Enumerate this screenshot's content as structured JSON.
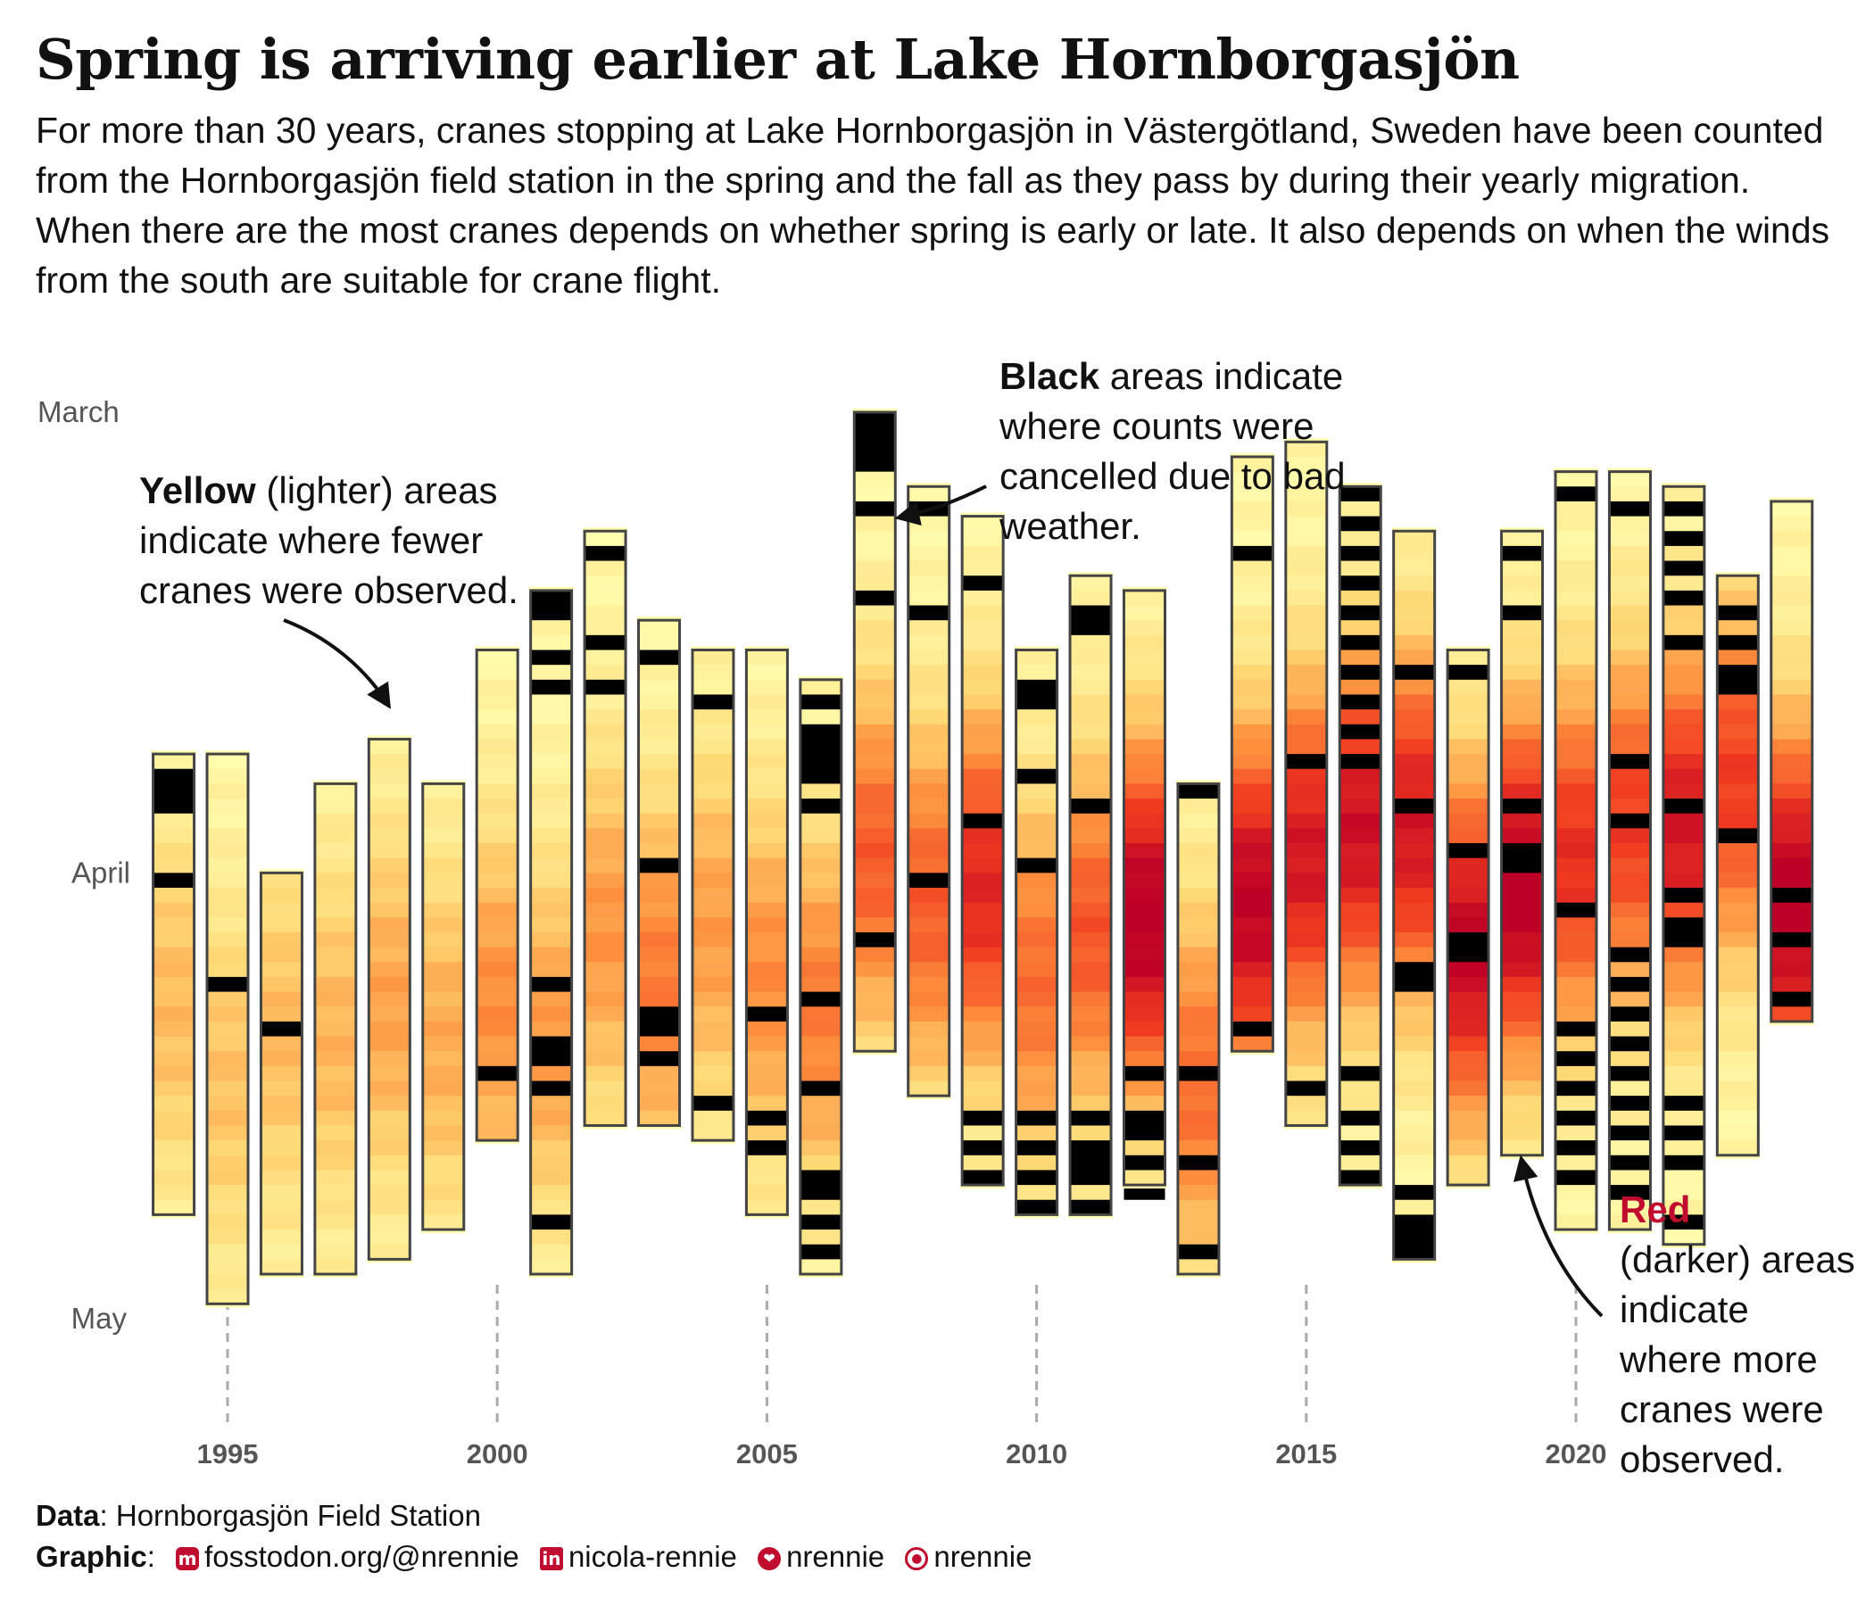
{
  "title": "Spring is arriving earlier at Lake Hornborgasjön",
  "subtitle": "For more than 30 years, cranes stopping at Lake Hornborgasjön in Västergötland, Sweden have been counted from the Hornborgasjön field station in the spring and the fall as they pass by during their yearly migration. When there are the most cranes depends on whether spring is early or late. It also depends on when the winds from the south are suitable for crane flight.",
  "annotations": {
    "yellow": {
      "bold": "Yellow",
      "rest": " (lighter) areas indicate where fewer cranes were observed."
    },
    "black": {
      "bold": "Black",
      "rest": " areas indicate where counts were cancelled due to bad weather."
    },
    "red": {
      "bold": "Red",
      "rest": "(darker) areas indicate where more cranes were observed."
    }
  },
  "caption": {
    "data_label": "Data",
    "data_text": ": Hornborgasjön Field Station",
    "graphic_label": "Graphic",
    "mastodon": "fosstodon.org/@nrennie",
    "linkedin": "nicola-rennie",
    "bluesky": "nrennie",
    "github": "nrennie"
  },
  "icons": [
    "mastodon-icon",
    "linkedin-icon",
    "bluesky-icon",
    "github-icon"
  ],
  "colors": {
    "low": "#ffffb2",
    "mid": "#fd8d3c",
    "high": "#bd0026",
    "cancelled": "#000000",
    "brand": "#c00d2f"
  },
  "chart_data": {
    "type": "heatmap",
    "title": "Spring is arriving earlier at Lake Hornborgasjön",
    "x_axis": {
      "ticks": [
        1995,
        2000,
        2005,
        2010,
        2015,
        2020
      ],
      "label": ""
    },
    "y_axis": {
      "ticks": [
        "March",
        "April",
        "May"
      ],
      "tick_days": [
        0,
        31,
        61
      ],
      "label": ""
    },
    "unit": "y = days after March 1 (counting window start/end)",
    "scale": "fill intensity 0 (yellow, fewer cranes) to 1 (red, more cranes); black = count cancelled",
    "years": [
      {
        "year": 1994,
        "start": 23,
        "end": 54,
        "peak": 0.3,
        "peak_day": 40,
        "cancelled": [
          [
            24,
            27
          ],
          [
            31,
            32
          ]
        ]
      },
      {
        "year": 1995,
        "start": 23,
        "end": 60,
        "peak": 0.28,
        "peak_day": 45,
        "cancelled": [
          [
            38,
            39
          ]
        ]
      },
      {
        "year": 1996,
        "start": 31,
        "end": 58,
        "peak": 0.3,
        "peak_day": 42,
        "cancelled": [
          [
            41,
            42
          ]
        ]
      },
      {
        "year": 1997,
        "start": 25,
        "end": 58,
        "peak": 0.32,
        "peak_day": 42,
        "cancelled": []
      },
      {
        "year": 1998,
        "start": 22,
        "end": 57,
        "peak": 0.38,
        "peak_day": 40,
        "cancelled": []
      },
      {
        "year": 1999,
        "start": 25,
        "end": 55,
        "peak": 0.35,
        "peak_day": 42,
        "cancelled": []
      },
      {
        "year": 2000,
        "start": 16,
        "end": 49,
        "peak": 0.45,
        "peak_day": 40,
        "cancelled": [
          [
            44,
            45
          ]
        ]
      },
      {
        "year": 2001,
        "start": 12,
        "end": 58,
        "peak": 0.4,
        "peak_day": 42,
        "cancelled": [
          [
            12,
            14
          ],
          [
            16,
            17
          ],
          [
            18,
            19
          ],
          [
            38,
            39
          ],
          [
            42,
            44
          ],
          [
            45,
            46
          ],
          [
            54,
            55
          ]
        ]
      },
      {
        "year": 2002,
        "start": 8,
        "end": 48,
        "peak": 0.42,
        "peak_day": 35,
        "cancelled": [
          [
            9,
            10
          ],
          [
            15,
            16
          ],
          [
            18,
            19
          ]
        ]
      },
      {
        "year": 2003,
        "start": 14,
        "end": 48,
        "peak": 0.5,
        "peak_day": 38,
        "cancelled": [
          [
            16,
            17
          ],
          [
            30,
            31
          ],
          [
            40,
            42
          ],
          [
            43,
            44
          ]
        ]
      },
      {
        "year": 2004,
        "start": 16,
        "end": 49,
        "peak": 0.4,
        "peak_day": 35,
        "cancelled": [
          [
            19,
            20
          ],
          [
            46,
            47
          ]
        ]
      },
      {
        "year": 2005,
        "start": 16,
        "end": 54,
        "peak": 0.45,
        "peak_day": 38,
        "cancelled": [
          [
            40,
            41
          ],
          [
            47,
            48
          ],
          [
            49,
            50
          ]
        ]
      },
      {
        "year": 2006,
        "start": 18,
        "end": 58,
        "peak": 0.5,
        "peak_day": 40,
        "cancelled": [
          [
            19,
            20
          ],
          [
            21,
            25
          ],
          [
            26,
            27
          ],
          [
            39,
            40
          ],
          [
            45,
            46
          ],
          [
            51,
            53
          ],
          [
            54,
            55
          ],
          [
            56,
            57
          ]
        ]
      },
      {
        "year": 2007,
        "start": 0,
        "end": 43,
        "peak": 0.6,
        "peak_day": 30,
        "cancelled": [
          [
            0,
            4
          ],
          [
            6,
            7
          ],
          [
            12,
            13
          ],
          [
            35,
            36
          ]
        ]
      },
      {
        "year": 2008,
        "start": 5,
        "end": 46,
        "peak": 0.6,
        "peak_day": 33,
        "cancelled": [
          [
            6,
            7
          ],
          [
            13,
            14
          ],
          [
            31,
            32
          ]
        ]
      },
      {
        "year": 2009,
        "start": 7,
        "end": 52,
        "peak": 0.78,
        "peak_day": 32,
        "cancelled": [
          [
            11,
            12
          ],
          [
            27,
            28
          ],
          [
            47,
            48
          ],
          [
            49,
            50
          ],
          [
            51,
            52
          ]
        ]
      },
      {
        "year": 2010,
        "start": 16,
        "end": 54,
        "peak": 0.55,
        "peak_day": 38,
        "cancelled": [
          [
            18,
            20
          ],
          [
            24,
            25
          ],
          [
            30,
            31
          ],
          [
            47,
            48
          ],
          [
            49,
            50
          ],
          [
            51,
            52
          ],
          [
            53,
            54
          ]
        ]
      },
      {
        "year": 2011,
        "start": 11,
        "end": 54,
        "peak": 0.62,
        "peak_day": 35,
        "cancelled": [
          [
            13,
            15
          ],
          [
            26,
            27
          ],
          [
            47,
            48
          ],
          [
            49,
            52
          ],
          [
            53,
            54
          ]
        ]
      },
      {
        "year": 2012,
        "start": 12,
        "end": 52,
        "peak": 0.98,
        "peak_day": 34,
        "cancelled": [
          [
            44,
            45
          ],
          [
            47,
            49
          ],
          [
            50,
            51
          ],
          [
            52,
            53
          ]
        ]
      },
      {
        "year": 2013,
        "start": 25,
        "end": 58,
        "peak": 0.55,
        "peak_day": 45,
        "cancelled": [
          [
            25,
            26
          ],
          [
            44,
            45
          ],
          [
            50,
            51
          ],
          [
            56,
            57
          ]
        ]
      },
      {
        "year": 2014,
        "start": 3,
        "end": 43,
        "peak": 0.95,
        "peak_day": 33,
        "cancelled": [
          [
            9,
            10
          ],
          [
            41,
            42
          ]
        ]
      },
      {
        "year": 2015,
        "start": 2,
        "end": 48,
        "peak": 0.85,
        "peak_day": 30,
        "cancelled": [
          [
            23,
            24
          ],
          [
            45,
            46
          ]
        ]
      },
      {
        "year": 2016,
        "start": 5,
        "end": 52,
        "peak": 0.88,
        "peak_day": 28,
        "cancelled": [
          [
            5,
            6
          ],
          [
            7,
            8
          ],
          [
            9,
            10
          ],
          [
            11,
            12
          ],
          [
            13,
            14
          ],
          [
            15,
            16
          ],
          [
            17,
            18
          ],
          [
            19,
            20
          ],
          [
            21,
            22
          ],
          [
            23,
            24
          ],
          [
            44,
            45
          ],
          [
            47,
            48
          ],
          [
            49,
            50
          ],
          [
            51,
            52
          ]
        ]
      },
      {
        "year": 2017,
        "start": 8,
        "end": 57,
        "peak": 0.85,
        "peak_day": 28,
        "cancelled": [
          [
            17,
            18
          ],
          [
            26,
            27
          ],
          [
            37,
            39
          ],
          [
            52,
            53
          ],
          [
            54,
            57
          ]
        ]
      },
      {
        "year": 2018,
        "start": 16,
        "end": 52,
        "peak": 0.92,
        "peak_day": 36,
        "cancelled": [
          [
            17,
            18
          ],
          [
            29,
            30
          ],
          [
            35,
            37
          ]
        ]
      },
      {
        "year": 2019,
        "start": 8,
        "end": 50,
        "peak": 1.0,
        "peak_day": 32,
        "cancelled": [
          [
            9,
            10
          ],
          [
            13,
            14
          ],
          [
            26,
            27
          ],
          [
            29,
            31
          ]
        ]
      },
      {
        "year": 2020,
        "start": 4,
        "end": 55,
        "peak": 0.75,
        "peak_day": 30,
        "cancelled": [
          [
            5,
            6
          ],
          [
            33,
            34
          ],
          [
            41,
            42
          ],
          [
            43,
            44
          ],
          [
            45,
            46
          ],
          [
            47,
            48
          ],
          [
            49,
            50
          ],
          [
            51,
            52
          ]
        ]
      },
      {
        "year": 2021,
        "start": 4,
        "end": 55,
        "peak": 0.7,
        "peak_day": 28,
        "cancelled": [
          [
            6,
            7
          ],
          [
            23,
            24
          ],
          [
            27,
            28
          ],
          [
            36,
            37
          ],
          [
            38,
            39
          ],
          [
            40,
            41
          ],
          [
            42,
            43
          ],
          [
            44,
            45
          ],
          [
            46,
            47
          ],
          [
            48,
            49
          ],
          [
            50,
            51
          ],
          [
            52,
            53
          ]
        ]
      },
      {
        "year": 2022,
        "start": 5,
        "end": 56,
        "peak": 0.85,
        "peak_day": 28,
        "cancelled": [
          [
            6,
            7
          ],
          [
            8,
            9
          ],
          [
            10,
            11
          ],
          [
            12,
            13
          ],
          [
            15,
            16
          ],
          [
            26,
            27
          ],
          [
            32,
            33
          ],
          [
            34,
            36
          ],
          [
            46,
            47
          ],
          [
            48,
            49
          ],
          [
            50,
            51
          ],
          [
            54,
            55
          ]
        ]
      },
      {
        "year": 2023,
        "start": 11,
        "end": 50,
        "peak": 0.7,
        "peak_day": 25,
        "cancelled": [
          [
            13,
            14
          ],
          [
            15,
            16
          ],
          [
            17,
            19
          ],
          [
            28,
            29
          ]
        ]
      },
      {
        "year": 2024,
        "start": 6,
        "end": 41,
        "peak": 0.98,
        "peak_day": 33,
        "cancelled": [
          [
            32,
            33
          ],
          [
            35,
            36
          ],
          [
            39,
            40
          ]
        ]
      }
    ]
  }
}
